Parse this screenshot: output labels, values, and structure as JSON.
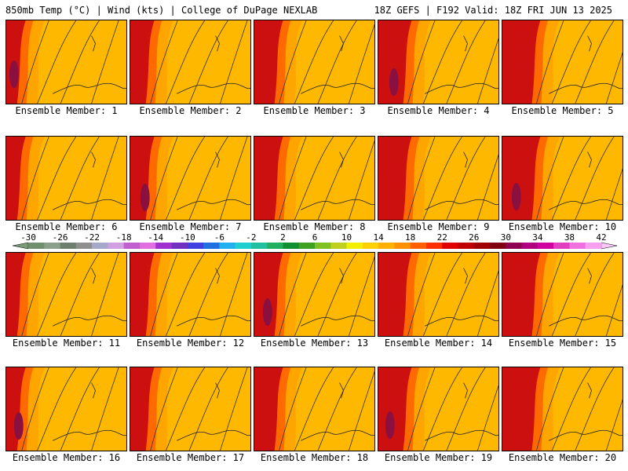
{
  "header": {
    "left": "850mb Temp (°C) | Wind (kts) | College of DuPage NEXLAB",
    "right": "18Z GEFS | F192 Valid: 18Z FRI JUN 13 2025"
  },
  "panel_label_prefix": "Ensemble Member:",
  "members": [
    1,
    2,
    3,
    4,
    5,
    6,
    7,
    8,
    9,
    10,
    11,
    12,
    13,
    14,
    15,
    16,
    17,
    18,
    19,
    20
  ],
  "colorbar": {
    "ticks": [
      "-30",
      "-26",
      "-22",
      "-18",
      "-14",
      "-10",
      "-6",
      "-2",
      "2",
      "6",
      "10",
      "14",
      "18",
      "22",
      "26",
      "30",
      "34",
      "38",
      "42"
    ],
    "colors": [
      "#6f8f6f",
      "#8aa08a",
      "#6e7f6e",
      "#8f8f8f",
      "#a8a8c8",
      "#d0a0e0",
      "#c060d0",
      "#e070e0",
      "#a030d0",
      "#7030c0",
      "#4040e0",
      "#2070e0",
      "#20b0f0",
      "#20d0d0",
      "#20c0a0",
      "#20b060",
      "#109030",
      "#40a020",
      "#80c020",
      "#c0d020",
      "#f0f000",
      "#ffd000",
      "#ffb000",
      "#ff9000",
      "#ff6000",
      "#ff3000",
      "#e00000",
      "#c00000",
      "#a00000",
      "#800010",
      "#900050",
      "#b00080",
      "#d000a0",
      "#e040c0",
      "#f070e0",
      "#f8a0f0"
    ]
  },
  "map_colors": {
    "hot": "#cc1010",
    "warm": "#ff6a00",
    "mild": "#ffa500",
    "cool": "#ffb800",
    "extreme": "#8a1040"
  }
}
